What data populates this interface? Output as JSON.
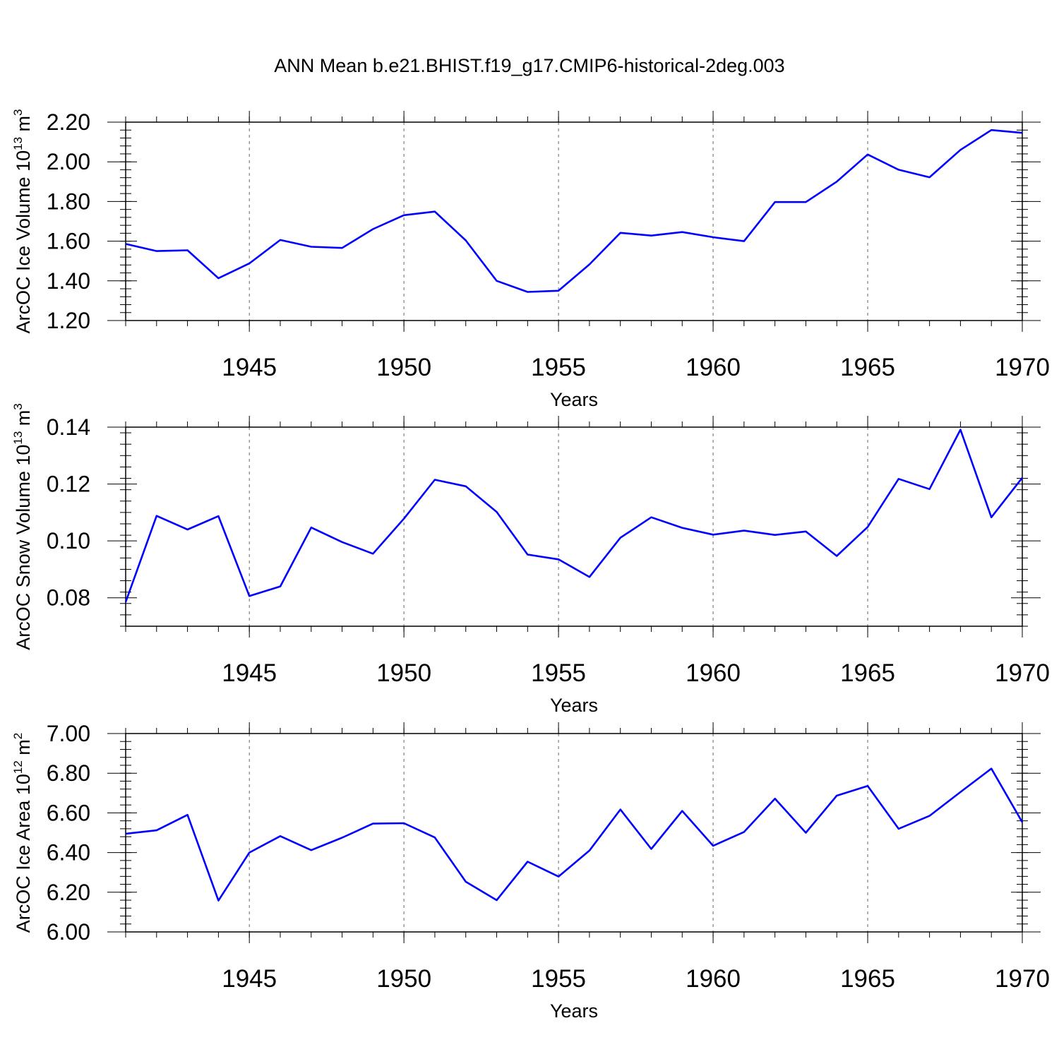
{
  "title": "ANN Mean b.e21.BHIST.f19_g17.CMIP6-historical-2deg.003",
  "line_color": "#0000ff",
  "chart_data": [
    {
      "type": "line",
      "ylabel": "ArcOC Ice Volume 10",
      "ylabel_exp": "13",
      "ylabel_unit": " m",
      "ylabel_unit_exp": "3",
      "xlabel": "Years",
      "xlim": [
        1941,
        1970
      ],
      "ylim": [
        1.2,
        2.2
      ],
      "yticks": [
        1.2,
        1.4,
        1.6,
        1.8,
        2.0,
        2.2
      ],
      "ytick_labels": [
        "1.20",
        "1.40",
        "1.60",
        "1.80",
        "2.00",
        "2.20"
      ],
      "xticks": [
        1945,
        1950,
        1955,
        1960,
        1965,
        1970
      ],
      "xtick_labels": [
        "1945",
        "1950",
        "1955",
        "1960",
        "1965",
        "1970"
      ],
      "x": [
        1941,
        1942,
        1943,
        1944,
        1945,
        1946,
        1947,
        1948,
        1949,
        1950,
        1951,
        1952,
        1953,
        1954,
        1955,
        1956,
        1957,
        1958,
        1959,
        1960,
        1961,
        1962,
        1963,
        1964,
        1965,
        1966,
        1967,
        1968,
        1969,
        1970
      ],
      "series": [
        {
          "values": [
            1.586,
            1.55,
            1.554,
            1.413,
            1.488,
            1.606,
            1.572,
            1.566,
            1.661,
            1.731,
            1.749,
            1.604,
            1.4,
            1.344,
            1.35,
            1.483,
            1.642,
            1.628,
            1.646,
            1.62,
            1.6,
            1.797,
            1.797,
            1.9,
            2.037,
            1.96,
            1.922,
            2.06,
            2.16,
            2.146
          ]
        }
      ]
    },
    {
      "type": "line",
      "ylabel": "ArcOC Snow Volume 10",
      "ylabel_exp": "13",
      "ylabel_unit": " m",
      "ylabel_unit_exp": "3",
      "xlabel": "Years",
      "xlim": [
        1941,
        1970
      ],
      "ylim": [
        0.07,
        0.14
      ],
      "yticks": [
        0.08,
        0.1,
        0.12,
        0.14
      ],
      "ytick_labels": [
        "0.08",
        "0.10",
        "0.12",
        "0.14"
      ],
      "xticks": [
        1945,
        1950,
        1955,
        1960,
        1965,
        1970
      ],
      "xtick_labels": [
        "1945",
        "1950",
        "1955",
        "1960",
        "1965",
        "1970"
      ],
      "x": [
        1941,
        1942,
        1943,
        1944,
        1945,
        1946,
        1947,
        1948,
        1949,
        1950,
        1951,
        1952,
        1953,
        1954,
        1955,
        1956,
        1957,
        1958,
        1959,
        1960,
        1961,
        1962,
        1963,
        1964,
        1965,
        1966,
        1967,
        1968,
        1969,
        1970
      ],
      "series": [
        {
          "values": [
            0.0785,
            0.1088,
            0.104,
            0.1087,
            0.0806,
            0.084,
            0.1047,
            0.0996,
            0.0955,
            0.1078,
            0.1215,
            0.1192,
            0.1102,
            0.0952,
            0.0935,
            0.0873,
            0.1011,
            0.1083,
            0.1046,
            0.1022,
            0.1036,
            0.1021,
            0.1033,
            0.0947,
            0.1049,
            0.1218,
            0.1182,
            0.1391,
            0.1083,
            0.1222
          ]
        }
      ]
    },
    {
      "type": "line",
      "ylabel": "ArcOC Ice Area 10",
      "ylabel_exp": "12",
      "ylabel_unit": " m",
      "ylabel_unit_exp": "2",
      "xlabel": "Years",
      "xlim": [
        1941,
        1970
      ],
      "ylim": [
        6.0,
        7.0
      ],
      "yticks": [
        6.0,
        6.2,
        6.4,
        6.6,
        6.8,
        7.0
      ],
      "ytick_labels": [
        "6.00",
        "6.20",
        "6.40",
        "6.60",
        "6.80",
        "7.00"
      ],
      "xticks": [
        1945,
        1950,
        1955,
        1960,
        1965,
        1970
      ],
      "xtick_labels": [
        "1945",
        "1950",
        "1955",
        "1960",
        "1965",
        "1970"
      ],
      "x": [
        1941,
        1942,
        1943,
        1944,
        1945,
        1946,
        1947,
        1948,
        1949,
        1950,
        1951,
        1952,
        1953,
        1954,
        1955,
        1956,
        1957,
        1958,
        1959,
        1960,
        1961,
        1962,
        1963,
        1964,
        1965,
        1966,
        1967,
        1968,
        1969,
        1970
      ],
      "series": [
        {
          "values": [
            6.495,
            6.512,
            6.59,
            6.158,
            6.4,
            6.483,
            6.412,
            6.475,
            6.546,
            6.548,
            6.476,
            6.253,
            6.16,
            6.354,
            6.279,
            6.41,
            6.617,
            6.418,
            6.61,
            6.434,
            6.504,
            6.672,
            6.5,
            6.687,
            6.736,
            6.52,
            6.585,
            6.705,
            6.823,
            6.553
          ]
        }
      ]
    }
  ]
}
